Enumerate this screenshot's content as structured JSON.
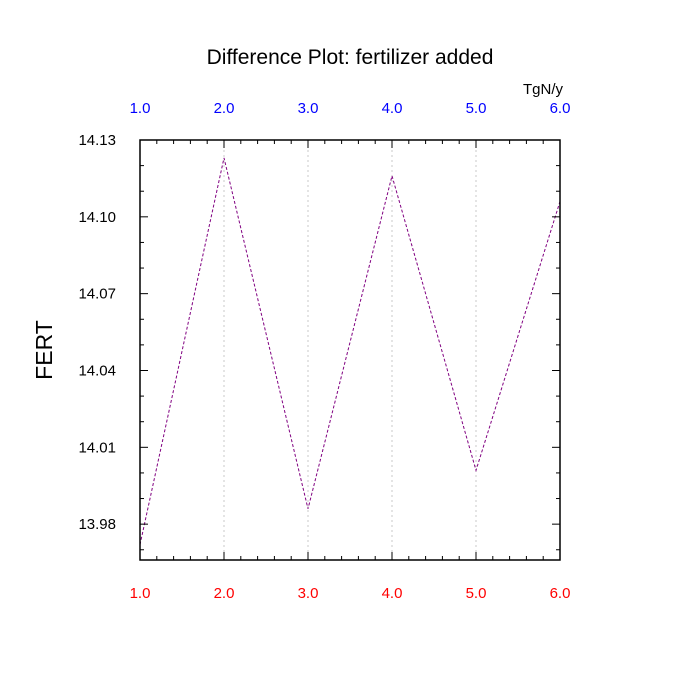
{
  "chart_data": {
    "type": "line",
    "title": "Difference Plot: fertilizer added",
    "ylabel": "FERT",
    "top_axis_unit": "TgN/y",
    "x": [
      1.0,
      2.0,
      3.0,
      4.0,
      5.0,
      6.0
    ],
    "xlim": [
      1.0,
      6.0
    ],
    "x_tick_labels": [
      "1.0",
      "2.0",
      "3.0",
      "4.0",
      "5.0",
      "6.0"
    ],
    "ylim": [
      13.966,
      14.13
    ],
    "y_ticks": [
      13.98,
      14.01,
      14.04,
      14.07,
      14.1,
      14.13
    ],
    "y_tick_labels": [
      "13.98",
      "14.01",
      "14.04",
      "14.07",
      "14.10",
      "14.13"
    ],
    "grid": "vertical dotted at x ticks",
    "series": [
      {
        "values": [
          13.972,
          14.123,
          13.986,
          14.116,
          14.001,
          14.106
        ],
        "color": "#800080",
        "style": "dashed"
      }
    ],
    "colors": {
      "bottom_tick_labels": "#ff0000",
      "top_tick_labels": "#0000ff",
      "axis": "#000000",
      "grid": "#c8c8c8"
    }
  }
}
